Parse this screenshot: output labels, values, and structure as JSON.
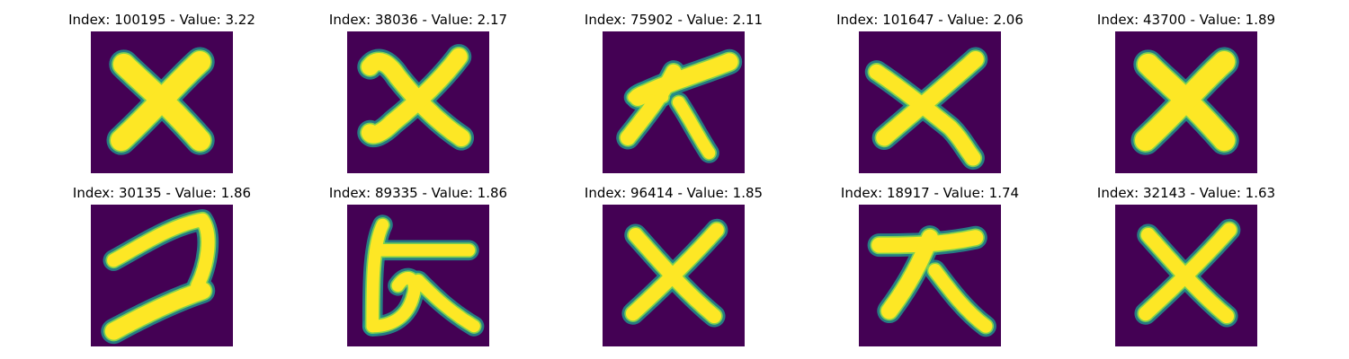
{
  "colors": {
    "background": "#440154",
    "halo": "#21918c",
    "edge": "#7ad151",
    "stroke": "#fde725"
  },
  "panels": [
    {
      "title": "Index: 100195 - Value: 3.22",
      "glyph": "x-thick"
    },
    {
      "title": "Index: 38036 - Value: 2.17",
      "glyph": "x-curly"
    },
    {
      "title": "Index: 75902 - Value: 2.11",
      "glyph": "daikon"
    },
    {
      "title": "Index: 101647 - Value: 2.06",
      "glyph": "x-hooked"
    },
    {
      "title": "Index: 43700 - Value: 1.89",
      "glyph": "x-thick"
    },
    {
      "title": "Index: 30135 - Value: 1.86",
      "glyph": "hook"
    },
    {
      "title": "Index: 89335 - Value: 1.86",
      "glyph": "loop-cross"
    },
    {
      "title": "Index: 96414 - Value: 1.85",
      "glyph": "x-thin"
    },
    {
      "title": "Index: 18917 - Value: 1.74",
      "glyph": "ten-kana"
    },
    {
      "title": "Index: 32143 - Value: 1.63",
      "glyph": "x-thin"
    }
  ]
}
